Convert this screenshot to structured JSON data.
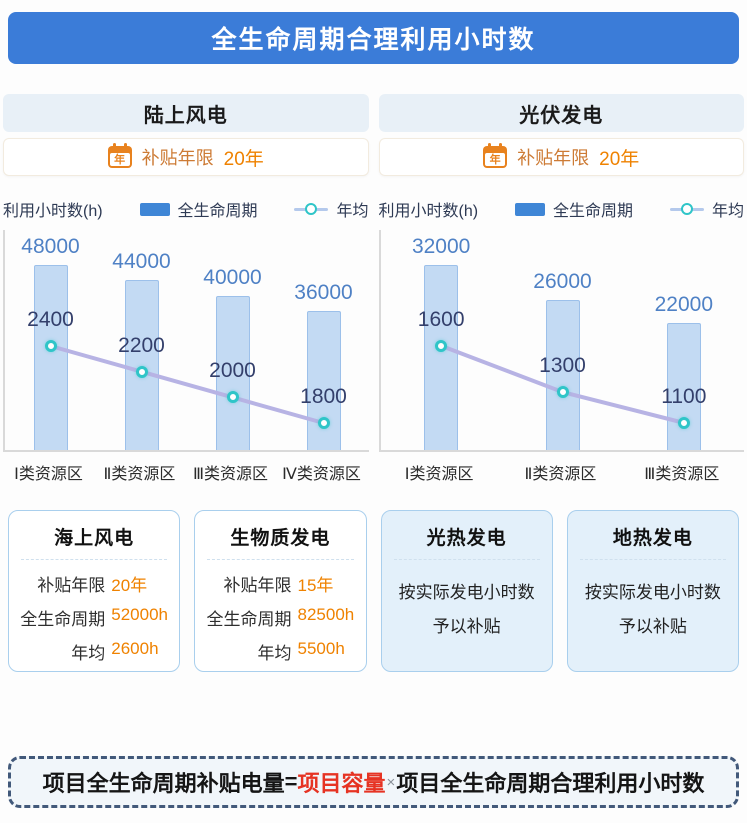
{
  "title": "全生命周期合理利用小时数",
  "calendar_icon_char": "年",
  "legend": {
    "axis_title": "利用小时数(h)",
    "bar_label": "全生命周期",
    "line_label": "年均"
  },
  "columns": [
    {
      "header": "陆上风电",
      "subsidy_label": "补贴年限",
      "subsidy_value": "20年"
    },
    {
      "header": "光伏发电",
      "subsidy_label": "补贴年限",
      "subsidy_value": "20年"
    }
  ],
  "chart_data": [
    {
      "type": "bar",
      "title": "陆上风电",
      "categories": [
        "Ⅰ类资源区",
        "Ⅱ类资源区",
        "Ⅲ类资源区",
        "Ⅳ类资源区"
      ],
      "series": [
        {
          "name": "全生命周期",
          "type": "bar",
          "values": [
            48000,
            44000,
            40000,
            36000
          ]
        },
        {
          "name": "年均",
          "type": "line",
          "values": [
            2400,
            2200,
            2000,
            1800
          ]
        }
      ],
      "ylabel": "利用小时数(h)",
      "legend_position": "top",
      "grid": false
    },
    {
      "type": "bar",
      "title": "光伏发电",
      "categories": [
        "Ⅰ类资源区",
        "Ⅱ类资源区",
        "Ⅲ类资源区"
      ],
      "series": [
        {
          "name": "全生命周期",
          "type": "bar",
          "values": [
            32000,
            26000,
            22000
          ]
        },
        {
          "name": "年均",
          "type": "line",
          "values": [
            1600,
            1300,
            1100
          ]
        }
      ],
      "ylabel": "利用小时数(h)",
      "legend_position": "top",
      "grid": false
    }
  ],
  "cards": [
    {
      "title": "海上风电",
      "rows": [
        {
          "label": "补贴年限",
          "value": "20年"
        },
        {
          "label": "全生命周期",
          "value": "52000h"
        },
        {
          "label": "年均",
          "value": "2600h"
        }
      ]
    },
    {
      "title": "生物质发电",
      "rows": [
        {
          "label": "补贴年限",
          "value": "15年"
        },
        {
          "label": "全生命周期",
          "value": "82500h"
        },
        {
          "label": "年均",
          "value": "5500h"
        }
      ]
    },
    {
      "title": "光热发电",
      "lines": [
        "按实际发电小时数",
        "予以补贴"
      ]
    },
    {
      "title": "地热发电",
      "lines": [
        "按实际发电小时数",
        "予以补贴"
      ]
    }
  ],
  "formula": {
    "lhs": "项目全生命周期补贴电量",
    "equals": "=",
    "highlight": "项目容量",
    "times": "×",
    "rhs": "项目全生命周期合理利用小时数"
  },
  "colors": {
    "header_bg": "#3b7cd8",
    "header_text": "#ffffff",
    "bar_fill": "#c3daf3",
    "bar_border": "#9cc0ea",
    "line": "#b7b3e4",
    "marker_stroke": "#2fc5c8",
    "marker_fill": "#ffffff",
    "bar_value_label": "#4f81c5",
    "line_value_label": "#333f6b",
    "orange_value": "#ef8200",
    "red_highlight": "#e63323",
    "axis": "#d9d9d9"
  }
}
